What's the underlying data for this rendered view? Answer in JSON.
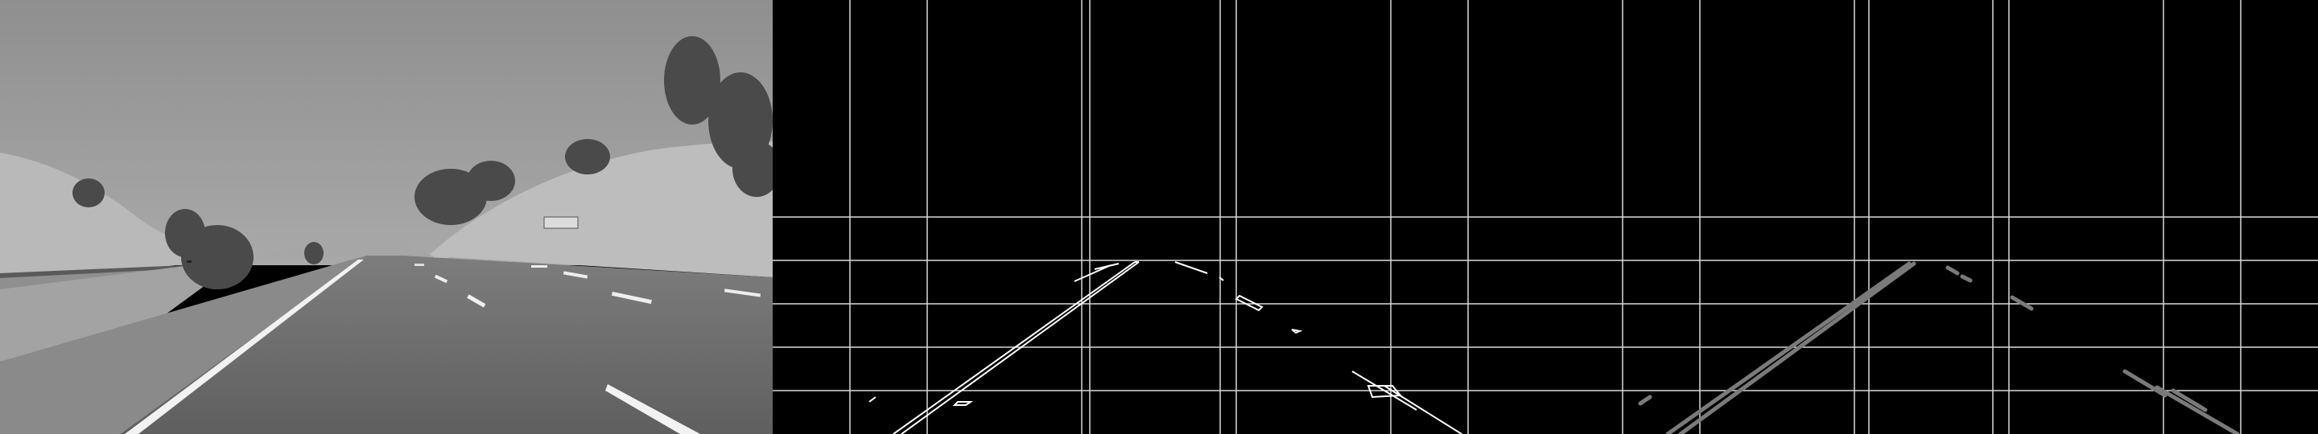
{
  "panels": [
    {
      "id": "grayscale-road-photo",
      "kind": "grayscale photograph",
      "icon": "road-photo"
    },
    {
      "id": "canny-edge-map",
      "kind": "edge detection output",
      "icon": "edge-map"
    },
    {
      "id": "hough-lines-map",
      "kind": "hough line detection output",
      "icon": "lane-lines"
    }
  ],
  "colors": {
    "sky": "#9a9a9a",
    "hill": "#b4b4b4",
    "road": "#6a6a6a",
    "lane_marking": "#f2f2f2",
    "edge_stroke": "#ffffff",
    "grid_line": "#d9d9d9",
    "hough_line": "#7a7a7a",
    "background": "#000000"
  }
}
